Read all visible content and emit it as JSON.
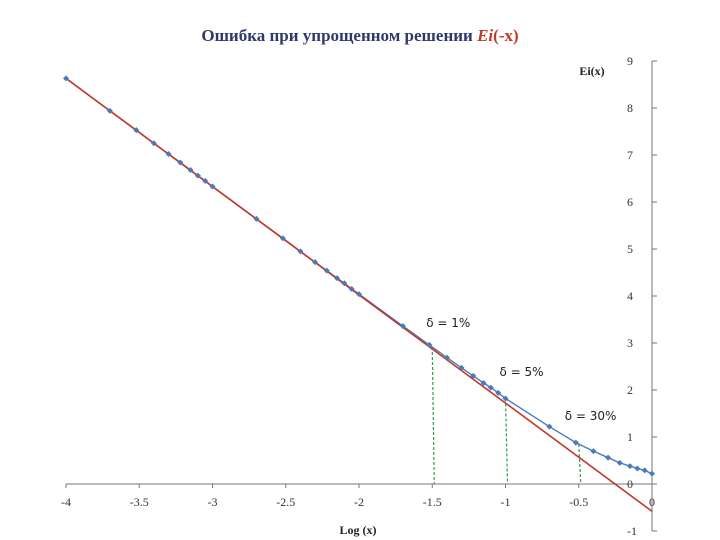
{
  "title": {
    "main": "Ошибка при упрощенном решении ",
    "ei": "Ei",
    "arg": "(-x)"
  },
  "chart_data": {
    "type": "line",
    "title": "Ошибка при упрощенном решении Ei(-x)",
    "xlabel": "Log (x)",
    "ylabel": "Ei(x)",
    "xlim": [
      -4,
      0
    ],
    "ylim": [
      -1,
      9
    ],
    "x_ticks": [
      "-4",
      "-3.5",
      "-3",
      "-2.5",
      "-2",
      "-1.5",
      "-1",
      "-0.5",
      "0"
    ],
    "y_ticks": [
      "9",
      "8",
      "7",
      "6",
      "5",
      "4",
      "3",
      "2",
      "1",
      "0",
      "-1"
    ],
    "series": [
      {
        "color": "#4a7ab8",
        "marker": "diamond",
        "x": [
          -4.0,
          -3.7,
          -3.52,
          -3.4,
          -3.3,
          -3.22,
          -3.15,
          -3.1,
          -3.05,
          -3.0,
          -2.7,
          -2.52,
          -2.4,
          -2.3,
          -2.22,
          -2.15,
          -2.1,
          -2.05,
          -2.0,
          -1.7,
          -1.52,
          -1.4,
          -1.3,
          -1.22,
          -1.15,
          -1.1,
          -1.05,
          -1.0,
          -0.7,
          -0.52,
          -0.4,
          -0.3,
          -0.22,
          -0.15,
          -0.1,
          -0.05,
          0.0
        ],
        "y": [
          8.63,
          7.94,
          7.53,
          7.25,
          7.02,
          6.84,
          6.68,
          6.56,
          6.45,
          6.33,
          5.64,
          5.23,
          4.95,
          4.72,
          4.54,
          4.38,
          4.27,
          4.15,
          4.04,
          3.36,
          2.96,
          2.69,
          2.47,
          2.3,
          2.15,
          2.05,
          1.94,
          1.82,
          1.22,
          0.88,
          0.7,
          0.56,
          0.45,
          0.38,
          0.33,
          0.29,
          0.22
        ]
      },
      {
        "color": "#c0392b",
        "x": [
          -4.0,
          0.0
        ],
        "y": [
          8.63,
          -0.58
        ]
      }
    ],
    "annotations": [
      {
        "text": "δ = 1%",
        "x": -1.5
      },
      {
        "text": "δ = 5%",
        "x": -1.0
      },
      {
        "text": "δ = 30%",
        "x": -0.5
      }
    ],
    "drop_line_color": "#2e9e4f",
    "grid": false,
    "legend": "none"
  }
}
